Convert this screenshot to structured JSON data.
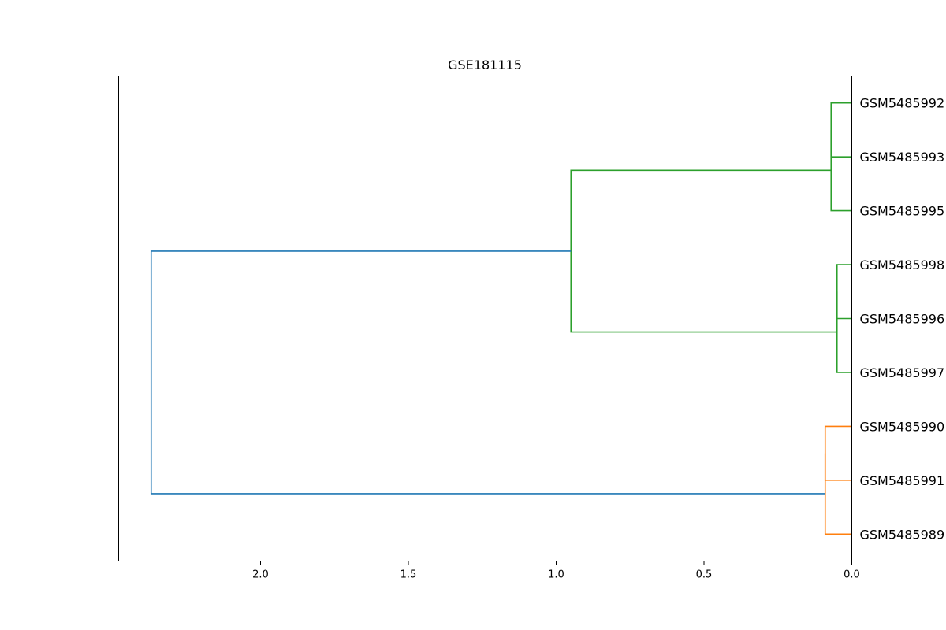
{
  "chart_data": {
    "type": "dendrogram",
    "title": "GSE181115",
    "orientation": "left",
    "xlim": [
      2.48,
      0.0
    ],
    "xticks": [
      2.0,
      1.5,
      1.0,
      0.5,
      0.0
    ],
    "xtick_labels": [
      "2.0",
      "1.5",
      "1.0",
      "0.5",
      "0.0"
    ],
    "leaves": [
      "GSM5485992",
      "GSM5485993",
      "GSM5485995",
      "GSM5485998",
      "GSM5485996",
      "GSM5485997",
      "GSM5485990",
      "GSM5485991",
      "GSM5485989"
    ],
    "links": [
      {
        "id": "green-a-inner",
        "color": "#2ca02c",
        "height": 0.07,
        "children": [
          {
            "leaf": 0
          },
          {
            "leaf": 1
          }
        ]
      },
      {
        "id": "green-a",
        "color": "#2ca02c",
        "height": 0.07,
        "children": [
          {
            "node": "green-a-inner"
          },
          {
            "leaf": 2
          }
        ]
      },
      {
        "id": "green-b-inner",
        "color": "#2ca02c",
        "height": 0.05,
        "children": [
          {
            "leaf": 3
          },
          {
            "leaf": 4
          }
        ]
      },
      {
        "id": "green-b",
        "color": "#2ca02c",
        "height": 0.05,
        "children": [
          {
            "node": "green-b-inner"
          },
          {
            "leaf": 5
          }
        ]
      },
      {
        "id": "green-top",
        "color": "#2ca02c",
        "height": 0.95,
        "children": [
          {
            "node": "green-a"
          },
          {
            "node": "green-b"
          }
        ]
      },
      {
        "id": "orange-inner",
        "color": "#ff7f0e",
        "height": 0.09,
        "children": [
          {
            "leaf": 6
          },
          {
            "leaf": 7
          }
        ]
      },
      {
        "id": "orange",
        "color": "#ff7f0e",
        "height": 0.09,
        "children": [
          {
            "node": "orange-inner"
          },
          {
            "leaf": 8
          }
        ]
      },
      {
        "id": "root",
        "color": "#1f77b4",
        "height": 2.37,
        "children": [
          {
            "node": "green-top"
          },
          {
            "node": "orange"
          }
        ]
      }
    ],
    "colors": {
      "cluster_1": "#2ca02c",
      "cluster_2": "#ff7f0e",
      "above_threshold": "#1f77b4"
    },
    "grid": false,
    "legend": "none"
  }
}
